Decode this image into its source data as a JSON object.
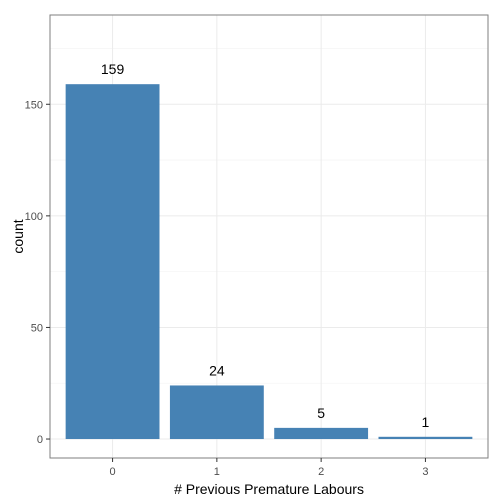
{
  "chart_data": {
    "type": "bar",
    "categories": [
      "0",
      "1",
      "2",
      "3"
    ],
    "values": [
      159,
      24,
      5,
      1
    ],
    "data_labels": [
      "159",
      "24",
      "5",
      "1"
    ],
    "title": "",
    "xlabel": "# Previous Premature Labours",
    "ylabel": "count",
    "ylim": [
      -8.5,
      190
    ],
    "yticks": [
      0,
      50,
      100,
      150
    ],
    "ytick_labels": [
      "0",
      "50",
      "100",
      "150"
    ],
    "grid": true,
    "legend": "none",
    "bar_color": "#4682b4",
    "background": "#ffffff"
  }
}
